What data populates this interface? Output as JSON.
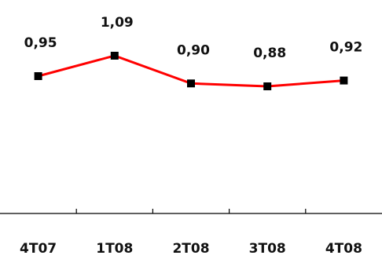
{
  "chart_data": {
    "type": "line",
    "categories": [
      "4T07",
      "1T08",
      "2T08",
      "3T08",
      "4T08"
    ],
    "series": [
      {
        "values": [
          0.95,
          1.09,
          0.9,
          0.88,
          0.92
        ]
      }
    ],
    "data_labels": [
      "0,95",
      "1,09",
      "0,90",
      "0,88",
      "0,92"
    ],
    "line_color": "#ff0000",
    "marker_color": "#000000",
    "grid": false,
    "legend": "none"
  }
}
